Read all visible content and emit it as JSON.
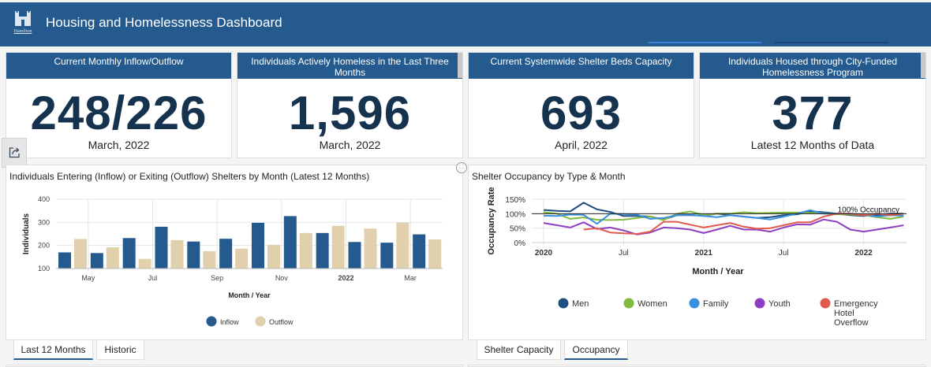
{
  "header": {
    "title": "Housing and Homelessness Dashboard",
    "logo_text": "Hamilton",
    "colors": {
      "bar": "#245a8d",
      "tab_indicator_1": "#3a82d6",
      "tab_indicator_2": "#1b4675"
    }
  },
  "cards": [
    {
      "title": "Current Monthly Inflow/Outflow",
      "value": "248/226",
      "subtitle": "March, 2022"
    },
    {
      "title": "Individuals Actively Homeless in the Last Three Months",
      "value": "1,596",
      "subtitle": "March, 2022"
    },
    {
      "title": "Current Systemwide Shelter Beds Capacity",
      "value": "693",
      "subtitle": "April, 2022"
    },
    {
      "title": "Individuals Housed through City-Funded Homelessness Program",
      "value": "377",
      "subtitle": "Latest 12 Months of Data"
    }
  ],
  "icons": {
    "share": "share-icon",
    "expand": "expand-icon",
    "logo": "city-logo-icon"
  },
  "left_panel": {
    "title": "Individuals Entering (Inflow) or Exiting (Outflow) Shelters by Month (Latest 12 Months)",
    "tabs": [
      {
        "label": "Last 12 Months",
        "active": true
      },
      {
        "label": "Historic",
        "active": false
      }
    ]
  },
  "right_panel": {
    "title": "Shelter Occupancy by Type & Month",
    "tabs": [
      {
        "label": "Shelter Capacity",
        "active": false
      },
      {
        "label": "Occupancy",
        "active": true
      }
    ]
  },
  "chart_data": [
    {
      "type": "bar",
      "title": "Individuals Entering (Inflow) or Exiting (Outflow) Shelters by Month (Latest 12 Months)",
      "xlabel": "Month / Year",
      "ylabel": "Individuals",
      "ylim": [
        100,
        400
      ],
      "yticks": [
        100,
        200,
        300,
        400
      ],
      "categories": [
        "Apr 2021",
        "May 2021",
        "Jun 2021",
        "Jul 2021",
        "Aug 2021",
        "Sep 2021",
        "Oct 2021",
        "Nov 2021",
        "Dec 2021",
        "Jan 2022",
        "Feb 2022",
        "Mar 2022"
      ],
      "xtick_labels": [
        {
          "label": "May",
          "index": 1,
          "bold": false
        },
        {
          "label": "Jul",
          "index": 3,
          "bold": false
        },
        {
          "label": "Sep",
          "index": 5,
          "bold": false
        },
        {
          "label": "Nov",
          "index": 7,
          "bold": false
        },
        {
          "label": "2022",
          "index": 9,
          "bold": true
        },
        {
          "label": "Mar",
          "index": 11,
          "bold": false
        }
      ],
      "series": [
        {
          "name": "Inflow",
          "color": "#245a8d",
          "values": [
            170,
            167,
            232,
            281,
            217,
            229,
            298,
            327,
            254,
            215,
            212,
            248
          ]
        },
        {
          "name": "Outflow",
          "color": "#e0d0ab",
          "values": [
            228,
            192,
            142,
            223,
            175,
            186,
            203,
            254,
            285,
            273,
            299,
            226
          ]
        }
      ],
      "grid": true,
      "legend": "bottom-center"
    },
    {
      "type": "line",
      "title": "Shelter Occupancy by Type & Month",
      "xlabel": "Month / Year",
      "ylabel": "Occupancy Rate",
      "ylim": [
        0,
        150
      ],
      "yticks": [
        0,
        50,
        100,
        150
      ],
      "ytick_suffix": "%",
      "x_start": "Jan 2020",
      "xtick_labels": [
        {
          "label": "2020",
          "index": 0,
          "bold": true
        },
        {
          "label": "Jul",
          "index": 6,
          "bold": false
        },
        {
          "label": "2021",
          "index": 12,
          "bold": true
        },
        {
          "label": "Jul",
          "index": 18,
          "bold": false
        },
        {
          "label": "2022",
          "index": 24,
          "bold": true
        }
      ],
      "reference_line": {
        "value": 100,
        "label": "100% Occupancy"
      },
      "series": [
        {
          "name": "Men",
          "color": "#1f4e80",
          "start": 0,
          "values": [
            113,
            110,
            108,
            138,
            115,
            106,
            92,
            92,
            90,
            80,
            95,
            95,
            93,
            100,
            95,
            90,
            85,
            88,
            95,
            98,
            108,
            105,
            100,
            95,
            92,
            95,
            100,
            100
          ]
        },
        {
          "name": "Women",
          "color": "#7fba3f",
          "start": 0,
          "values": [
            105,
            100,
            82,
            87,
            79,
            78,
            79,
            85,
            90,
            78,
            100,
            108,
            95,
            100,
            100,
            105,
            102,
            103,
            104,
            104,
            103,
            102,
            98,
            97,
            95,
            88,
            82,
            90
          ]
        },
        {
          "name": "Family",
          "color": "#3a8fde",
          "start": 0,
          "values": [
            93,
            92,
            97,
            96,
            65,
            100,
            99,
            97,
            82,
            85,
            95,
            96,
            92,
            88,
            95,
            90,
            85,
            80,
            90,
            100,
            112,
            100,
            100,
            100,
            97,
            90,
            95,
            93
          ]
        },
        {
          "name": "Youth",
          "color": "#8d3fc2",
          "start": 0,
          "values": [
            68,
            60,
            52,
            70,
            47,
            52,
            42,
            28,
            35,
            52,
            50,
            45,
            33,
            45,
            58,
            45,
            45,
            38,
            52,
            63,
            62,
            80,
            72,
            45,
            38,
            45,
            52,
            60
          ]
        },
        {
          "name": "Emergency Hotel Overflow",
          "color": "#e05a4f",
          "start": 3,
          "values": [
            45,
            50,
            35,
            32,
            30,
            38,
            72,
            72,
            62,
            52,
            60,
            68,
            55,
            48,
            50,
            60,
            70,
            70,
            90,
            100,
            100,
            95,
            100,
            95,
            100
          ]
        }
      ],
      "grid": true,
      "legend": "bottom"
    }
  ]
}
